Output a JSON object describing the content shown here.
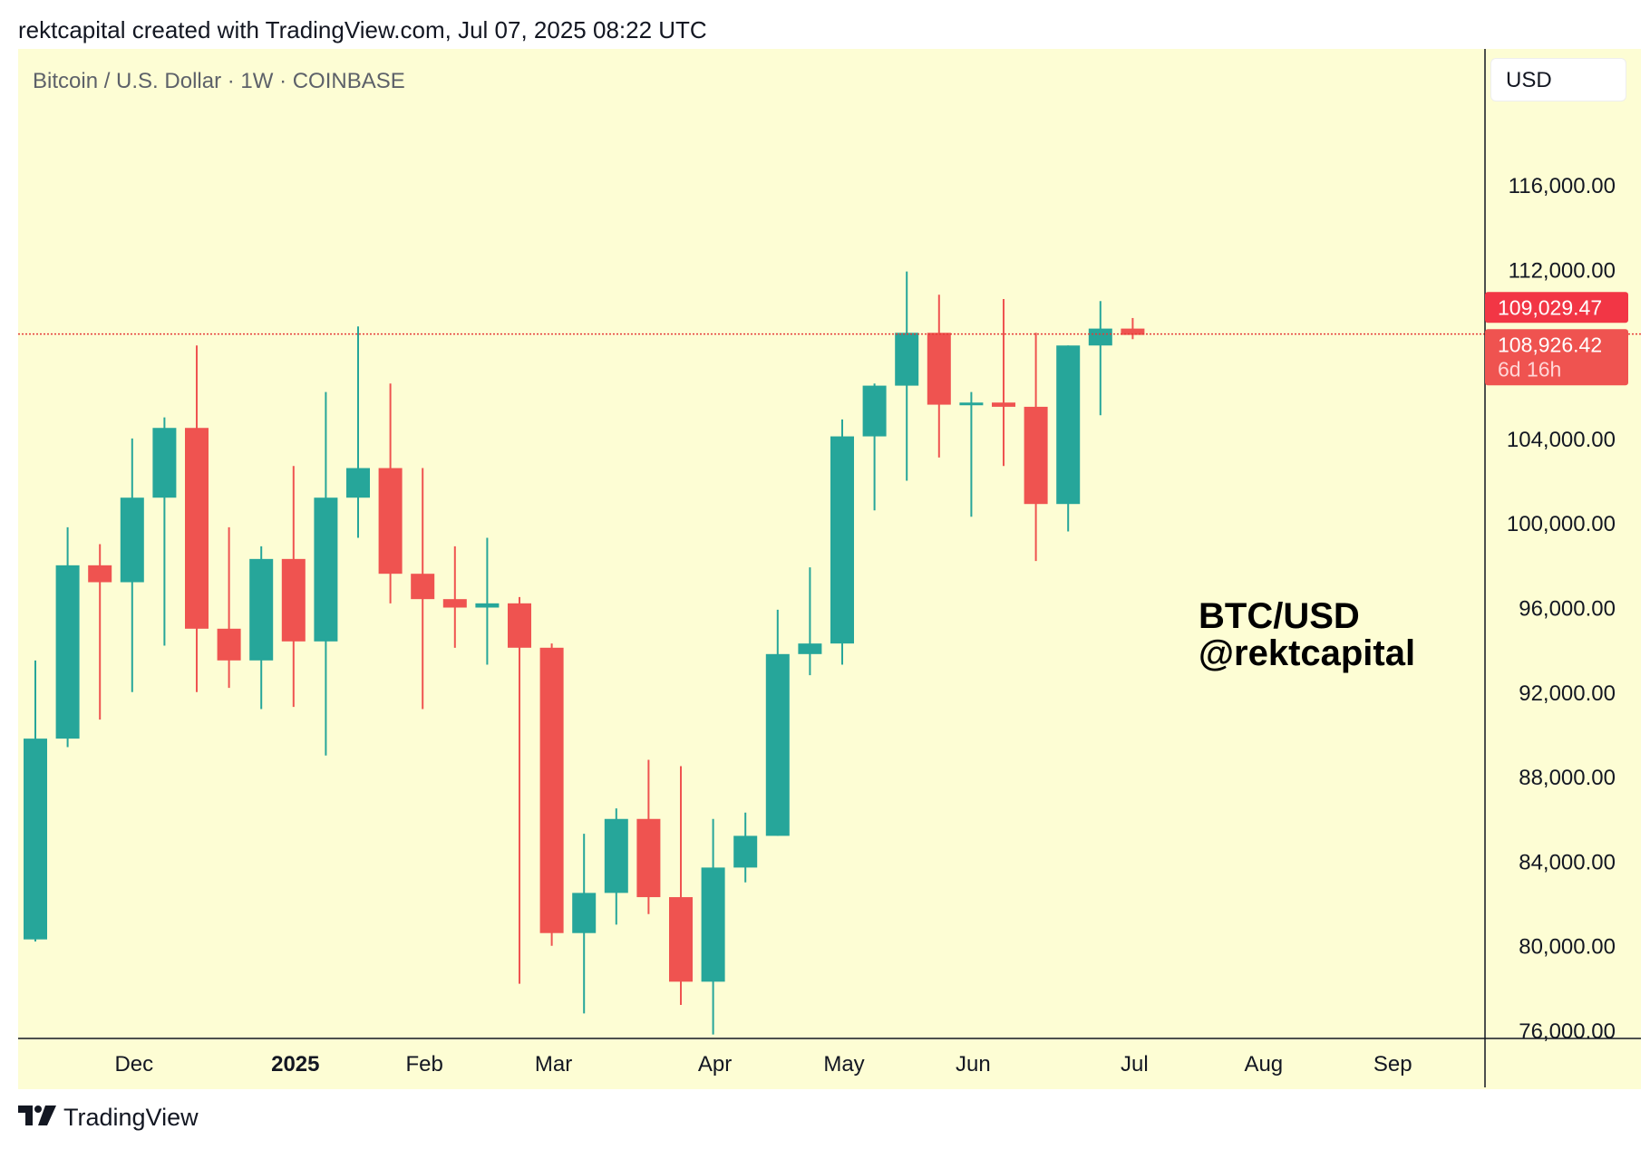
{
  "header": {
    "credit": "rektcapital created with TradingView.com, Jul 07, 2025 08:22 UTC"
  },
  "symbol": {
    "title": "Bitcoin / U.S. Dollar · 1W · COINBASE"
  },
  "currency": "USD",
  "watermark": {
    "line1": "BTC/USD",
    "line2": "@rektcapital"
  },
  "footer": {
    "brand": "TradingView"
  },
  "colors": {
    "up": "#26a69a",
    "down": "#ef5350",
    "background": "#fdfdd4",
    "price_line": "#e53935",
    "last_tag": "#f23645",
    "prev_tag": "#ef5350"
  },
  "chart_data": {
    "type": "candlestick",
    "title": "Bitcoin / U.S. Dollar · 1W · COINBASE",
    "ylim": [
      75800,
      119000
    ],
    "y_ticks": [
      "76,000.00",
      "80,000.00",
      "84,000.00",
      "88,000.00",
      "92,000.00",
      "96,000.00",
      "100,000.00",
      "104,000.00",
      "108,000.00",
      "112,000.00",
      "116,000.00"
    ],
    "y_tick_values": [
      76000,
      80000,
      84000,
      88000,
      92000,
      96000,
      100000,
      104000,
      108000,
      112000,
      116000
    ],
    "x_labels": [
      {
        "label": "Dec",
        "candle": 3,
        "bold": false
      },
      {
        "label": "2025",
        "candle": 8,
        "bold": true
      },
      {
        "label": "Feb",
        "candle": 12,
        "bold": false
      },
      {
        "label": "Mar",
        "candle": 16,
        "bold": false
      },
      {
        "label": "Apr",
        "candle": 21,
        "bold": false
      },
      {
        "label": "May",
        "candle": 25,
        "bold": false
      },
      {
        "label": "Jun",
        "candle": 29,
        "bold": false
      },
      {
        "label": "Jul",
        "candle": 34,
        "bold": false
      },
      {
        "label": "Aug",
        "candle": 38,
        "bold": false
      },
      {
        "label": "Sep",
        "candle": 42,
        "bold": false
      }
    ],
    "candles": [
      {
        "o": 80300,
        "h": 93500,
        "l": 80200,
        "c": 89800
      },
      {
        "o": 89800,
        "h": 99800,
        "l": 89400,
        "c": 98000
      },
      {
        "o": 98000,
        "h": 99000,
        "l": 90700,
        "c": 97200
      },
      {
        "o": 97200,
        "h": 104000,
        "l": 92000,
        "c": 101200
      },
      {
        "o": 101200,
        "h": 105000,
        "l": 94200,
        "c": 104500
      },
      {
        "o": 104500,
        "h": 108400,
        "l": 92000,
        "c": 95000
      },
      {
        "o": 95000,
        "h": 99800,
        "l": 92200,
        "c": 93500
      },
      {
        "o": 93500,
        "h": 98900,
        "l": 91200,
        "c": 98300
      },
      {
        "o": 98300,
        "h": 102700,
        "l": 91300,
        "c": 94400
      },
      {
        "o": 94400,
        "h": 106200,
        "l": 89000,
        "c": 101200
      },
      {
        "o": 101200,
        "h": 109300,
        "l": 99300,
        "c": 102600
      },
      {
        "o": 102600,
        "h": 106600,
        "l": 96200,
        "c": 97600
      },
      {
        "o": 97600,
        "h": 102600,
        "l": 91200,
        "c": 96400
      },
      {
        "o": 96400,
        "h": 98900,
        "l": 94100,
        "c": 96000
      },
      {
        "o": 96000,
        "h": 99300,
        "l": 93300,
        "c": 96200
      },
      {
        "o": 96200,
        "h": 96500,
        "l": 78200,
        "c": 94100
      },
      {
        "o": 94100,
        "h": 94300,
        "l": 80000,
        "c": 80600
      },
      {
        "o": 80600,
        "h": 85300,
        "l": 76800,
        "c": 82500
      },
      {
        "o": 82500,
        "h": 86500,
        "l": 81000,
        "c": 86000
      },
      {
        "o": 86000,
        "h": 88800,
        "l": 81500,
        "c": 82300
      },
      {
        "o": 82300,
        "h": 88500,
        "l": 77200,
        "c": 78300
      },
      {
        "o": 78300,
        "h": 86000,
        "l": 75800,
        "c": 83700
      },
      {
        "o": 83700,
        "h": 86300,
        "l": 83000,
        "c": 85200
      },
      {
        "o": 85200,
        "h": 95900,
        "l": 85200,
        "c": 93800
      },
      {
        "o": 93800,
        "h": 97900,
        "l": 92800,
        "c": 94300
      },
      {
        "o": 94300,
        "h": 104900,
        "l": 93300,
        "c": 104100
      },
      {
        "o": 104100,
        "h": 106600,
        "l": 100600,
        "c": 106500
      },
      {
        "o": 106500,
        "h": 111900,
        "l": 102000,
        "c": 109000
      },
      {
        "o": 109000,
        "h": 110800,
        "l": 103100,
        "c": 105600
      },
      {
        "o": 105600,
        "h": 106200,
        "l": 100300,
        "c": 105700
      },
      {
        "o": 105700,
        "h": 110600,
        "l": 102700,
        "c": 105500
      },
      {
        "o": 105500,
        "h": 109000,
        "l": 98200,
        "c": 100900
      },
      {
        "o": 100900,
        "h": 108400,
        "l": 99600,
        "c": 108400
      },
      {
        "o": 108400,
        "h": 110500,
        "l": 105100,
        "c": 109200
      },
      {
        "o": 109200,
        "h": 109700,
        "l": 108700,
        "c": 108900
      }
    ],
    "price_line": 109029.47,
    "tags": [
      {
        "label": "109,029.47",
        "sub": "",
        "value": 110200,
        "color": "#f23645"
      },
      {
        "label": "108,926.42",
        "sub": "6d 16h",
        "value": 108400,
        "color": "#ef5350"
      }
    ]
  }
}
